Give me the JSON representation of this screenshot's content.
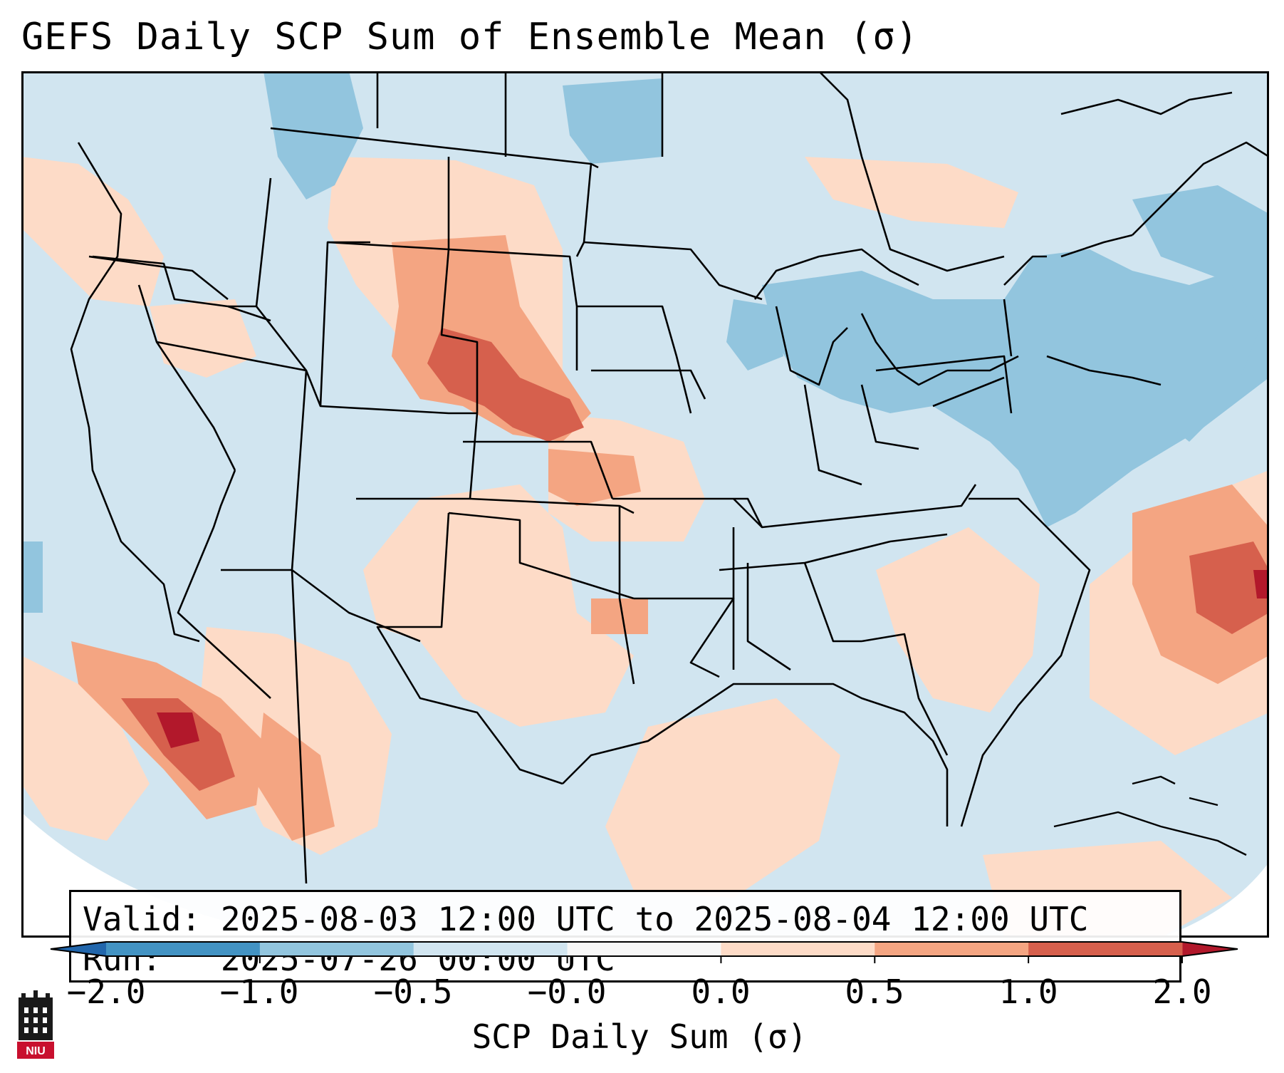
{
  "title": "GEFS Daily SCP Sum of Ensemble Mean (σ)",
  "info": {
    "valid_line": "Valid: 2025-08-03 12:00 UTC to 2025-08-04 12:00 UTC",
    "run_line": "Run:   2025-07-26 00:00 UTC"
  },
  "colorbar": {
    "label": "SCP Daily Sum (σ)",
    "ticks": [
      "−2.0",
      "−1.0",
      "−0.5",
      "−0.0",
      "0.0",
      "0.5",
      "1.0",
      "2.0"
    ],
    "bins": [
      {
        "from": -2.0,
        "to": -1.0,
        "color": "#4393c3"
      },
      {
        "from": -1.0,
        "to": -0.5,
        "color": "#92c5de"
      },
      {
        "from": -0.5,
        "to": -0.0,
        "color": "#d1e5f0"
      },
      {
        "from": -0.0,
        "to": 0.0,
        "color": "#f7f7f7"
      },
      {
        "from": 0.0,
        "to": 0.5,
        "color": "#fddbc7"
      },
      {
        "from": 0.5,
        "to": 1.0,
        "color": "#f4a582"
      },
      {
        "from": 1.0,
        "to": 2.0,
        "color": "#d6604d"
      }
    ],
    "under_color": "#2166ac",
    "over_color": "#b2182b"
  },
  "logo": {
    "text": "NIU",
    "name": "northern-illinois-university-logo"
  },
  "map": {
    "projection": "Lambert Conformal (CONUS)",
    "background_color": "#d1e5f0",
    "field": "SCP Daily Sum anomaly (σ)",
    "regions": [
      {
        "name": "northern-rockies-high-plains",
        "sigma": 0.3
      },
      {
        "name": "western-nebraska-south-dakota",
        "sigma": 0.8
      },
      {
        "name": "wyoming-colorado-border",
        "sigma": 0.8
      },
      {
        "name": "kansas",
        "sigma": 0.3
      },
      {
        "name": "texas-southern-plains",
        "sigma": 0.3
      },
      {
        "name": "gulf-of-mexico",
        "sigma": 0.3
      },
      {
        "name": "southeast-us",
        "sigma": 0.3
      },
      {
        "name": "western-atlantic",
        "sigma": 0.8
      },
      {
        "name": "baja-gulf-of-california",
        "sigma": 0.8
      },
      {
        "name": "gulf-of-california-core",
        "sigma": 1.5
      },
      {
        "name": "great-lakes-northeast",
        "sigma": -0.7
      },
      {
        "name": "southern-canada",
        "sigma": -0.7
      }
    ]
  }
}
